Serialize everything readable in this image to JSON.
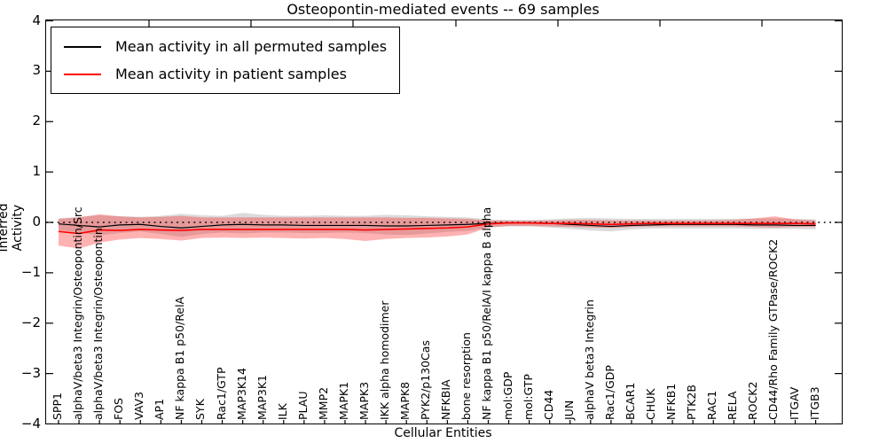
{
  "figure": {
    "title": "Osteopontin-mediated events -- 69 samples",
    "xlabel": "Cellular Entities",
    "ylabel": "Inferred Activity"
  },
  "legend": {
    "items": [
      {
        "label": "Mean activity in all permuted samples",
        "color": "#000000"
      },
      {
        "label": "Mean activity in patient samples",
        "color": "#ff0000"
      }
    ]
  },
  "chart_data": {
    "type": "line",
    "title": "Osteopontin-mediated events -- 69 samples",
    "xlabel": "Cellular Entities",
    "ylabel": "Inferred Activity",
    "ylim": [
      -4,
      4
    ],
    "yticks": [
      -4,
      -3,
      -2,
      -1,
      0,
      1,
      2,
      3,
      4
    ],
    "grid": false,
    "legend_position": "upper left",
    "zero_line": {
      "y": 0,
      "style": "dotted",
      "color": "#000000"
    },
    "categories": [
      "SPP1",
      "alphaV/beta3 Integrin/Osteopontin/Src",
      "alphaV/beta3 Integrin/Osteopontin",
      "FOS",
      "VAV3",
      "AP1",
      "NF kappa B1 p50/RelA",
      "SYK",
      "Rac1/GTP",
      "MAP3K14",
      "MAP3K1",
      "ILK",
      "PLAU",
      "MMP2",
      "MAPK1",
      "MAPK3",
      "IKK alpha homodimer",
      "MAPK8",
      "PYK2/p130Cas",
      "NFKBIA",
      "bone resorption",
      "NF kappa B1 p50/RelA/I kappa B alpha",
      "mol:GDP",
      "mol:GTP",
      "CD44",
      "JUN",
      "alphaV beta3 Integrin",
      "Rac1/GDP",
      "BCAR1",
      "CHUK",
      "NFKB1",
      "PTK2B",
      "RAC1",
      "RELA",
      "ROCK2",
      "CD44/Rho Family GTPase/ROCK2",
      "ITGAV",
      "ITGB3"
    ],
    "series": [
      {
        "name": "Mean activity in all permuted samples",
        "color": "#000000",
        "band_color": "#888888",
        "band_opacity": 0.3,
        "values": [
          -0.03,
          -0.06,
          -0.09,
          -0.05,
          -0.04,
          -0.08,
          -0.11,
          -0.08,
          -0.05,
          -0.04,
          -0.05,
          -0.05,
          -0.06,
          -0.06,
          -0.06,
          -0.06,
          -0.07,
          -0.07,
          -0.06,
          -0.05,
          -0.04,
          -0.02,
          -0.01,
          -0.01,
          -0.02,
          -0.04,
          -0.06,
          -0.08,
          -0.06,
          -0.05,
          -0.04,
          -0.04,
          -0.04,
          -0.04,
          -0.05,
          -0.05,
          -0.06,
          -0.06
        ],
        "band_upper": [
          0.08,
          0.11,
          0.14,
          0.12,
          0.11,
          0.13,
          0.17,
          0.14,
          0.13,
          0.19,
          0.15,
          0.13,
          0.13,
          0.14,
          0.13,
          0.13,
          0.15,
          0.14,
          0.12,
          0.11,
          0.1,
          0.06,
          0.05,
          0.05,
          0.06,
          0.08,
          0.09,
          0.08,
          0.07,
          0.07,
          0.07,
          0.07,
          0.07,
          0.07,
          0.08,
          0.08,
          0.07,
          0.06
        ],
        "band_lower": [
          -0.15,
          -0.2,
          -0.26,
          -0.21,
          -0.18,
          -0.23,
          -0.29,
          -0.23,
          -0.2,
          -0.22,
          -0.2,
          -0.2,
          -0.21,
          -0.21,
          -0.2,
          -0.21,
          -0.24,
          -0.25,
          -0.22,
          -0.19,
          -0.17,
          -0.1,
          -0.08,
          -0.08,
          -0.1,
          -0.13,
          -0.16,
          -0.18,
          -0.14,
          -0.12,
          -0.12,
          -0.12,
          -0.12,
          -0.12,
          -0.13,
          -0.13,
          -0.13,
          -0.14
        ]
      },
      {
        "name": "Mean activity in patient samples",
        "color": "#ff0000",
        "band_color": "#ff0000",
        "band_opacity": 0.3,
        "values": [
          -0.18,
          -0.22,
          -0.15,
          -0.16,
          -0.14,
          -0.15,
          -0.16,
          -0.14,
          -0.14,
          -0.14,
          -0.14,
          -0.14,
          -0.14,
          -0.14,
          -0.14,
          -0.15,
          -0.14,
          -0.13,
          -0.12,
          -0.11,
          -0.09,
          -0.03,
          -0.01,
          -0.01,
          -0.02,
          -0.02,
          -0.03,
          -0.04,
          -0.03,
          -0.02,
          -0.02,
          -0.02,
          -0.02,
          -0.02,
          -0.02,
          -0.02,
          -0.02,
          -0.03
        ],
        "band_upper": [
          0.07,
          0.1,
          0.16,
          0.12,
          0.1,
          0.11,
          0.13,
          0.1,
          0.1,
          0.1,
          0.1,
          0.1,
          0.1,
          0.1,
          0.1,
          0.1,
          0.1,
          0.09,
          0.09,
          0.08,
          0.07,
          0.04,
          0.03,
          0.03,
          0.04,
          0.05,
          0.05,
          0.04,
          0.04,
          0.04,
          0.04,
          0.04,
          0.04,
          0.05,
          0.08,
          0.12,
          0.06,
          0.04
        ],
        "band_lower": [
          -0.46,
          -0.52,
          -0.4,
          -0.34,
          -0.31,
          -0.33,
          -0.36,
          -0.31,
          -0.3,
          -0.31,
          -0.3,
          -0.31,
          -0.32,
          -0.31,
          -0.33,
          -0.37,
          -0.33,
          -0.31,
          -0.3,
          -0.28,
          -0.24,
          -0.1,
          -0.07,
          -0.07,
          -0.08,
          -0.09,
          -0.1,
          -0.11,
          -0.09,
          -0.08,
          -0.08,
          -0.08,
          -0.08,
          -0.08,
          -0.09,
          -0.1,
          -0.09,
          -0.09
        ]
      }
    ]
  }
}
